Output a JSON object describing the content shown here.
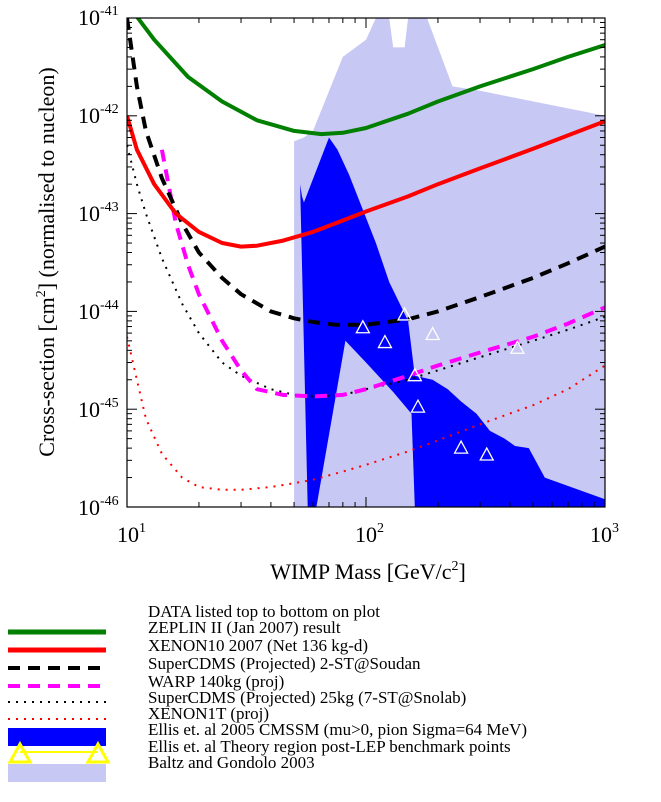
{
  "chart_data": {
    "type": "line",
    "xscale": "log",
    "yscale": "log",
    "xlim": [
      10,
      1000
    ],
    "ylim": [
      1e-46,
      1e-41
    ],
    "x_ticks": [
      {
        "base": "10",
        "exp": "1"
      },
      {
        "base": "10",
        "exp": "2"
      },
      {
        "base": "10",
        "exp": "3"
      }
    ],
    "y_ticks": [
      {
        "base": "10",
        "exp": "-46",
        "value": 1e-46
      },
      {
        "base": "10",
        "exp": "-45",
        "value": 1e-45
      },
      {
        "base": "10",
        "exp": "-44",
        "value": 1e-44
      },
      {
        "base": "10",
        "exp": "-43",
        "value": 1e-43
      },
      {
        "base": "10",
        "exp": "-42",
        "value": 1e-42
      },
      {
        "base": "10",
        "exp": "-41",
        "value": 1e-41
      }
    ],
    "xlabel": {
      "main": "WIMP Mass [GeV/c",
      "sup": "2",
      "end": "]"
    },
    "ylabel": {
      "main": "Cross-section [cm",
      "sup": "2",
      "end": "] (normalised to nucleon)"
    },
    "legend_header": "DATA listed top to bottom on plot",
    "legend_placement": "below",
    "series": [
      {
        "name": "ZEPLIN II (Jan 2007) result",
        "color": "#007f00",
        "style": "solid",
        "x": [
          10.5,
          13,
          18,
          25,
          35,
          50,
          65,
          80,
          100,
          150,
          200,
          300,
          500,
          700,
          1000
        ],
        "y": [
          1.2e-41,
          6e-42,
          2.5e-42,
          1.4e-42,
          9e-43,
          7e-43,
          6.5e-43,
          6.7e-43,
          7.5e-43,
          1.05e-42,
          1.4e-42,
          2e-42,
          3e-42,
          4e-42,
          5.3e-42
        ]
      },
      {
        "name": "XENON10 2007 (Net 136 kg-d)",
        "color": "#ff0000",
        "style": "solid",
        "x": [
          10,
          11,
          13,
          16,
          20,
          25,
          30,
          35,
          45,
          60,
          80,
          100,
          150,
          200,
          300,
          500,
          700,
          1000
        ],
        "y": [
          1e-42,
          4.5e-43,
          2e-43,
          1e-43,
          6.5e-44,
          5e-44,
          4.6e-44,
          4.7e-44,
          5.3e-44,
          6.5e-44,
          8.5e-44,
          1.05e-43,
          1.5e-43,
          2e-43,
          2.9e-43,
          4.6e-43,
          6.3e-43,
          8.8e-43
        ]
      },
      {
        "name": "SuperCDMS (Projected) 2-ST@Soudan",
        "color": "#000000",
        "style": "dash",
        "x": [
          10,
          11,
          12,
          14,
          17,
          20,
          25,
          30,
          40,
          50,
          60,
          75,
          100,
          150,
          200,
          300,
          500,
          700,
          1000
        ],
        "y": [
          1e-41,
          2e-42,
          7e-43,
          2.3e-43,
          8e-44,
          4e-44,
          2.2e-44,
          1.5e-44,
          1e-44,
          8.5e-45,
          7.8e-45,
          7.3e-45,
          7.3e-45,
          8.3e-45,
          1e-44,
          1.4e-44,
          2.2e-44,
          3.1e-44,
          4.6e-44
        ]
      },
      {
        "name": "WARP 140kg (proj)",
        "color": "#ff00ff",
        "style": "dash",
        "x": [
          14,
          16,
          18,
          20,
          25,
          30,
          35,
          45,
          60,
          80,
          100,
          150,
          200,
          300,
          500,
          700,
          1000
        ],
        "y": [
          4.5e-43,
          8e-44,
          3e-44,
          1.5e-44,
          5e-45,
          2.5e-45,
          1.6e-45,
          1.4e-45,
          1.35e-45,
          1.4e-45,
          1.6e-45,
          2.2e-45,
          2.8e-45,
          3.8e-45,
          5.5e-45,
          7.5e-45,
          1.1e-44
        ]
      },
      {
        "name": "SuperCDMS (Projected) 25kg (7-ST@Snolab)",
        "color": "#000000",
        "style": "dot",
        "x": [
          10,
          11,
          12,
          14,
          17,
          20,
          25,
          30,
          40,
          50,
          60,
          80,
          100,
          150,
          200,
          300,
          500,
          700,
          1000
        ],
        "y": [
          5e-43,
          2e-43,
          1e-43,
          3.5e-44,
          1.2e-44,
          6e-45,
          3e-45,
          2.2e-45,
          1.6e-45,
          1.4e-45,
          1.35e-45,
          1.4e-45,
          1.6e-45,
          2e-45,
          2.5e-45,
          3.4e-45,
          5e-45,
          6.5e-45,
          8.8e-45
        ]
      },
      {
        "name": "XENON1T (proj)",
        "color": "#ff0000",
        "style": "dot",
        "x": [
          10,
          11,
          12,
          14,
          17,
          20,
          25,
          30,
          40,
          50,
          60,
          80,
          100,
          150,
          200,
          300,
          500,
          700,
          1000
        ],
        "y": [
          5.5e-45,
          2e-45,
          8e-46,
          3.5e-46,
          2e-46,
          1.6e-46,
          1.5e-46,
          1.5e-46,
          1.6e-46,
          1.75e-46,
          1.9e-46,
          2.3e-46,
          2.7e-46,
          3.7e-46,
          4.8e-46,
          7e-46,
          1.1e-45,
          1.6e-45,
          2.8e-45
        ]
      }
    ],
    "regions": [
      {
        "name": "Ellis et. al 2005 CMSSM (mu>0, pion Sigma=64 MeV)",
        "color": "#0000ff",
        "x": [
          53,
          54,
          55,
          70,
          76,
          85,
          110,
          125,
          150,
          160,
          190,
          220,
          250,
          290,
          330,
          380,
          420,
          480,
          560,
          1000,
          1000,
          580,
          460,
          340,
          230,
          200,
          160,
          155,
          130,
          100,
          82,
          62,
          59,
          57
        ],
        "y": [
          2e-43,
          1.5e-43,
          1.3e-43,
          6e-43,
          4.5e-43,
          2.5e-43,
          5e-44,
          2e-44,
          8e-45,
          2.2e-45,
          2e-45,
          1.6e-45,
          1.2e-45,
          9e-46,
          6e-46,
          5e-46,
          4.2e-46,
          4e-46,
          2e-46,
          1.2e-46,
          1e-46,
          1e-46,
          1e-46,
          1e-46,
          1e-46,
          1e-46,
          1e-46,
          9e-46,
          1.5e-45,
          3e-45,
          5e-45,
          1e-46,
          1e-46,
          1e-46
        ]
      },
      {
        "name": "Baltz and Gondolo 2003",
        "color": "#c8c8f5",
        "x": [
          50,
          50,
          55,
          60,
          80,
          100,
          110,
          125,
          130,
          145,
          150,
          160,
          180,
          230,
          300,
          1000,
          1000,
          50
        ],
        "y": [
          1e-46,
          5.5e-43,
          6e-43,
          7e-43,
          4e-42,
          6e-42,
          1e-41,
          1e-41,
          5e-42,
          5e-42,
          1e-41,
          1e-41,
          1e-41,
          2e-42,
          1.8e-42,
          1e-42,
          1e-46,
          1e-46
        ]
      }
    ],
    "benchmarks": {
      "name": "Ellis et. al Theory region post-LEP benchmark points",
      "marker": "triangle",
      "points": [
        {
          "x": 97,
          "y": 6.8e-45
        },
        {
          "x": 120,
          "y": 4.8e-45
        },
        {
          "x": 145,
          "y": 9.2e-45
        },
        {
          "x": 190,
          "y": 5.8e-45
        },
        {
          "x": 160,
          "y": 2.2e-45
        },
        {
          "x": 165,
          "y": 1.05e-45
        },
        {
          "x": 250,
          "y": 4e-46
        },
        {
          "x": 320,
          "y": 3.4e-46
        },
        {
          "x": 430,
          "y": 4.2e-45
        }
      ]
    }
  }
}
